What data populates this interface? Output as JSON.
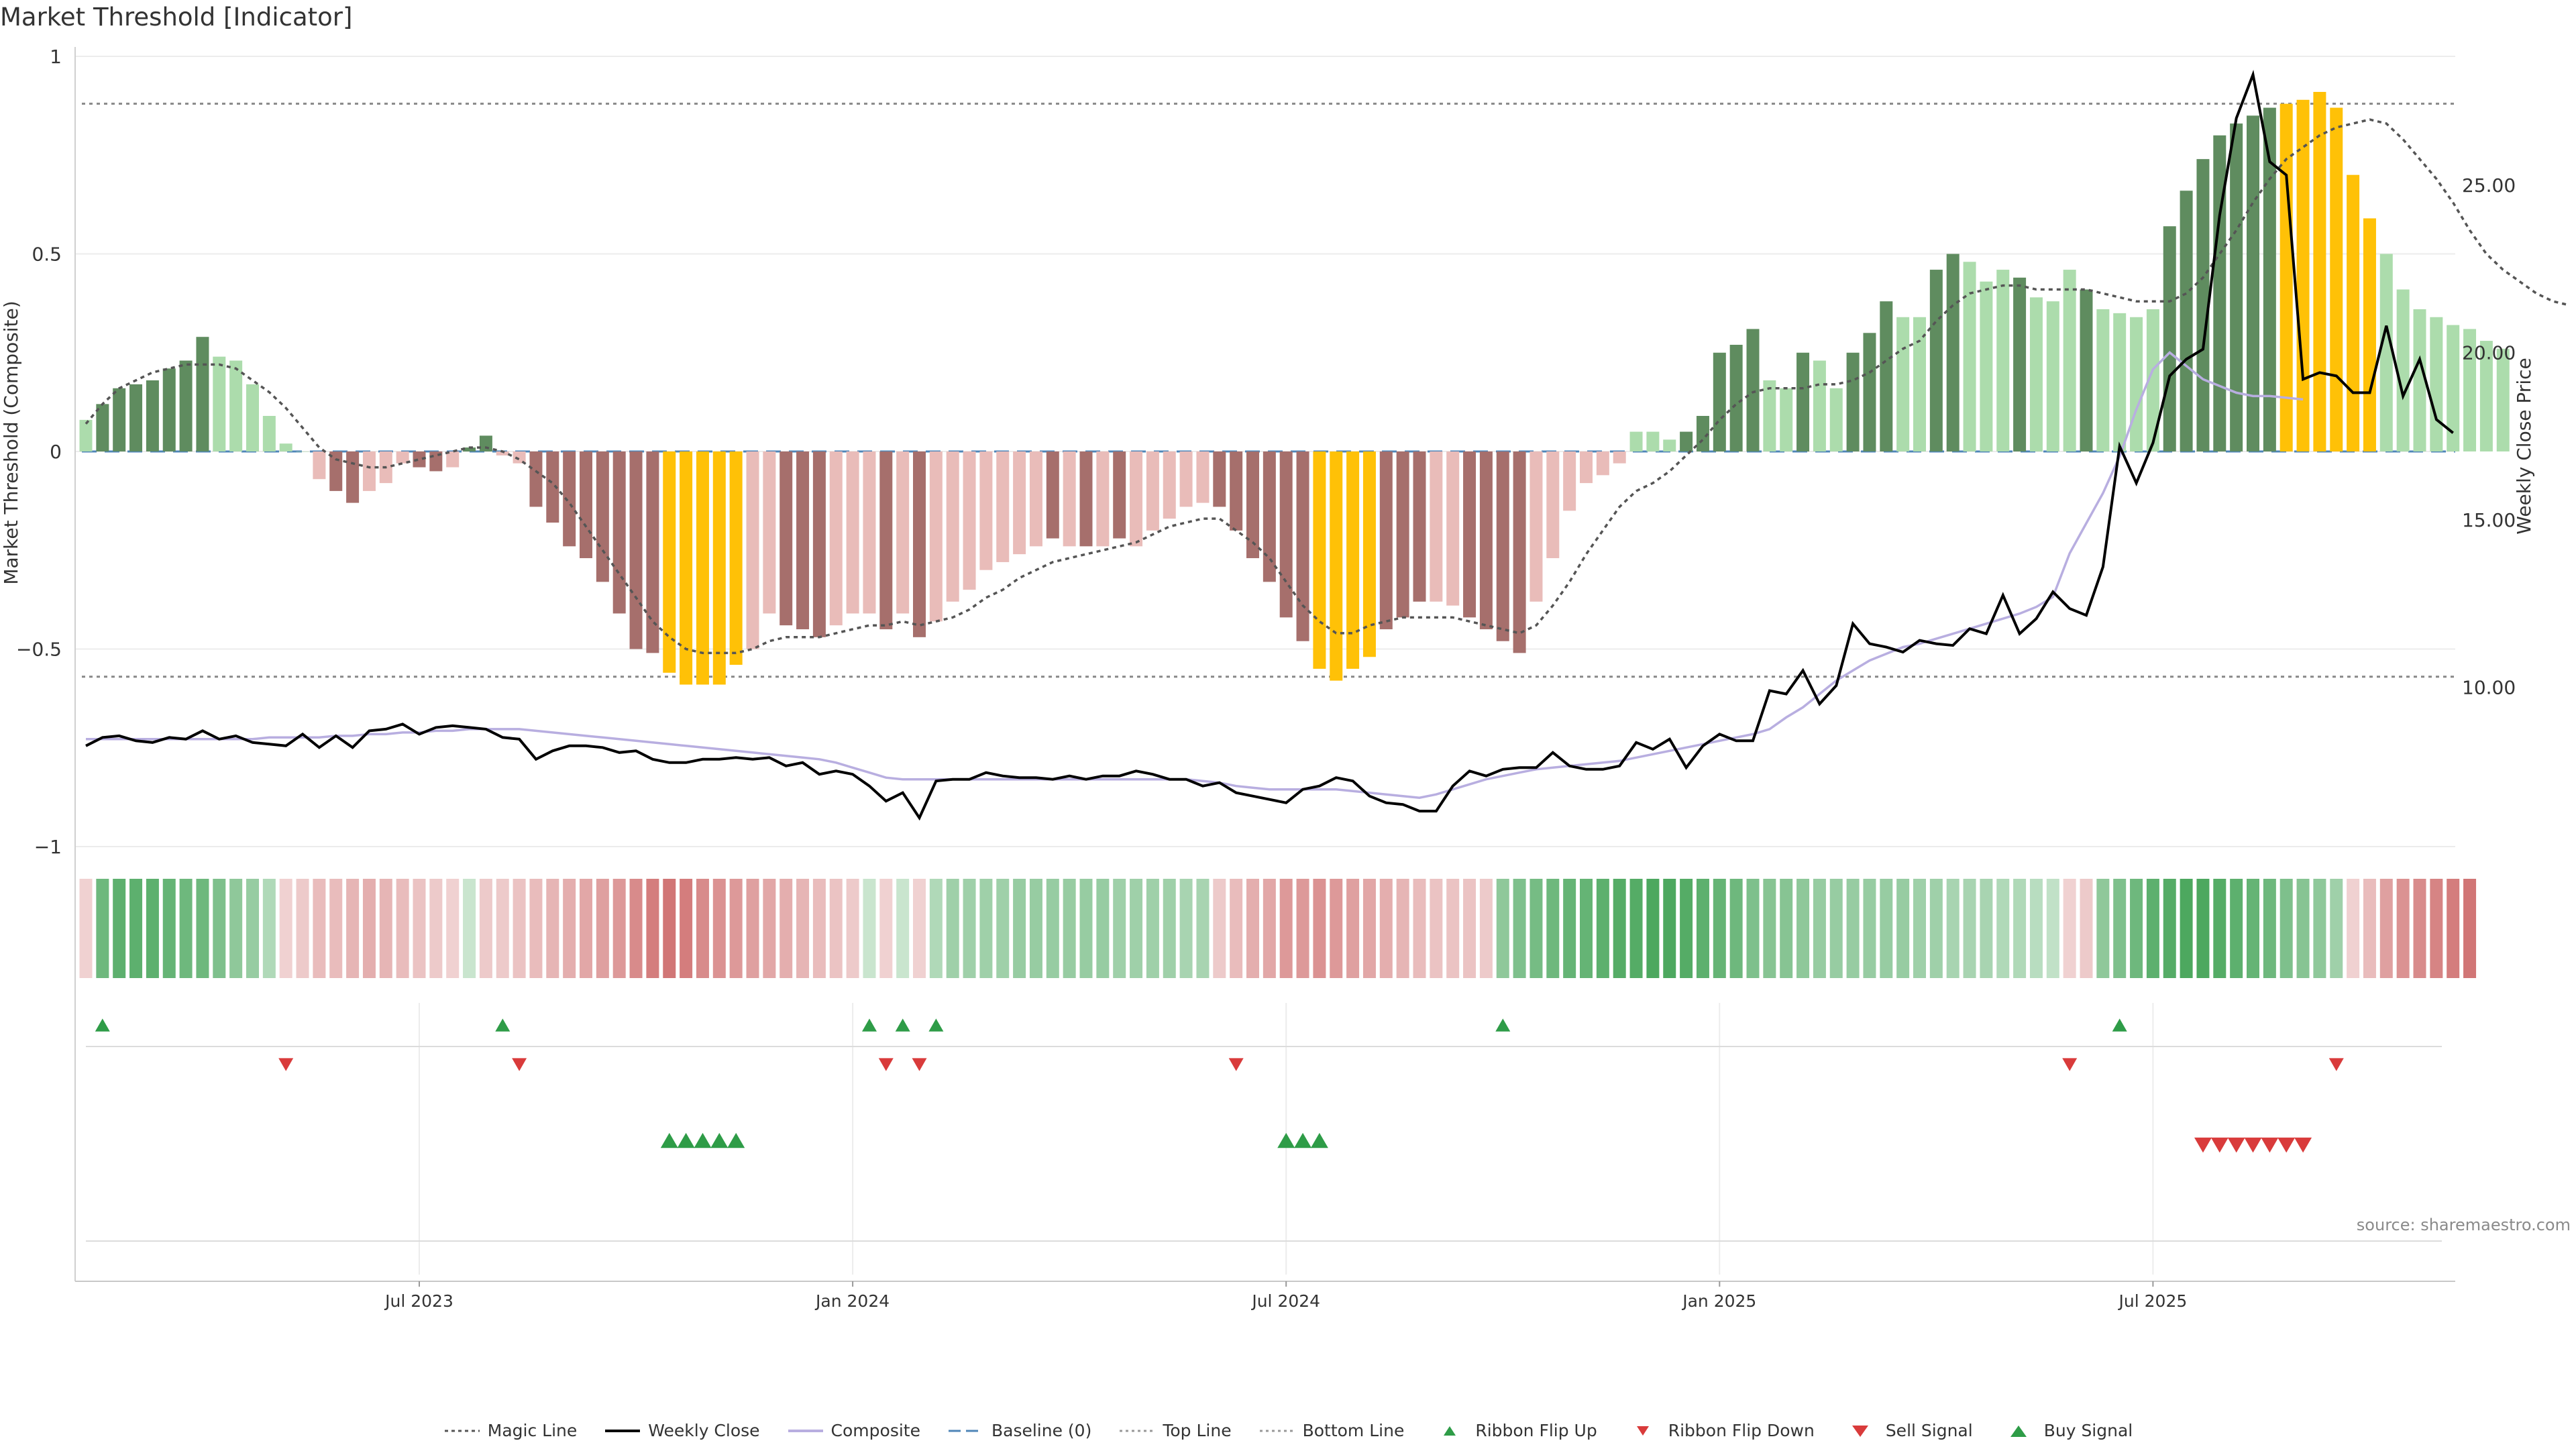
{
  "title": "Market Threshold [Indicator]",
  "source": "source: sharemaestro.com",
  "colors": {
    "bar_strong_pos": "#5f8c5f",
    "bar_weak_pos": "#acdcac",
    "bar_strong_neg": "#a66f6c",
    "bar_weak_neg": "#e9bcb9",
    "bar_extreme": "#ffc107",
    "weekly_close": "#000000",
    "composite": "#b8aee0",
    "magic_line": "#555555",
    "baseline": "#4f86b8",
    "up_marker": "#2e9c47",
    "down_marker": "#d93b3b"
  },
  "legend": [
    {
      "label": "Magic Line",
      "icon": "dotted-line-dark"
    },
    {
      "label": "Weekly Close",
      "icon": "solid-line-black"
    },
    {
      "label": "Composite",
      "icon": "solid-line-lavender"
    },
    {
      "label": "Baseline (0)",
      "icon": "dashed-line-blue"
    },
    {
      "label": "Top Line",
      "icon": "dotted-line-grey"
    },
    {
      "label": "Bottom Line",
      "icon": "dotted-line-grey"
    },
    {
      "label": "Ribbon Flip Up",
      "icon": "triangle-up-green-small"
    },
    {
      "label": "Ribbon Flip Down",
      "icon": "triangle-down-red-small"
    },
    {
      "label": "Sell Signal",
      "icon": "triangle-down-red"
    },
    {
      "label": "Buy Signal",
      "icon": "triangle-up-green"
    }
  ],
  "chart_data": {
    "type": "bar",
    "title": "Market Threshold [Indicator]",
    "ylabel": "Market Threshold (Composite)",
    "y2label": "Weekly Close Price",
    "ylim": [
      -1,
      1
    ],
    "y2lim": [
      6.2,
      28.5
    ],
    "yticks": [
      {
        "v": 1,
        "label": "1"
      },
      {
        "v": 0.5,
        "label": "0.5"
      },
      {
        "v": 0,
        "label": "0"
      },
      {
        "v": -0.5,
        "label": "−0.5"
      },
      {
        "v": -1,
        "label": "−1"
      }
    ],
    "y2ticks": [
      {
        "v": 10,
        "label": "10.00"
      },
      {
        "v": 15,
        "label": "15.00"
      },
      {
        "v": 20,
        "label": "20.00"
      },
      {
        "v": 25,
        "label": "25.00"
      }
    ],
    "xticks": [
      {
        "week": 20,
        "label": "Jul 2023"
      },
      {
        "week": 46,
        "label": "Jan 2024"
      },
      {
        "week": 72,
        "label": "Jul 2024"
      },
      {
        "week": 98,
        "label": "Jan 2025"
      },
      {
        "week": 124,
        "label": "Jul 2025"
      }
    ],
    "top_line": 0.88,
    "bottom_line": -0.57,
    "baseline": 0,
    "grid": true,
    "legend_position": "bottom-center",
    "bar_values": [
      0.08,
      0.12,
      0.16,
      0.17,
      0.18,
      0.21,
      0.23,
      0.29,
      0.24,
      0.23,
      0.17,
      0.09,
      0.02,
      0,
      -0.07,
      -0.1,
      -0.13,
      -0.1,
      -0.08,
      -0.03,
      -0.04,
      -0.05,
      -0.04,
      0.01,
      0.04,
      -0.01,
      -0.03,
      -0.14,
      -0.18,
      -0.24,
      -0.27,
      -0.33,
      -0.41,
      -0.5,
      -0.51,
      -0.56,
      -0.59,
      -0.59,
      -0.59,
      -0.54,
      -0.5,
      -0.41,
      -0.44,
      -0.45,
      -0.47,
      -0.44,
      -0.41,
      -0.41,
      -0.45,
      -0.41,
      -0.47,
      -0.43,
      -0.38,
      -0.35,
      -0.3,
      -0.28,
      -0.26,
      -0.24,
      -0.22,
      -0.24,
      -0.24,
      -0.24,
      -0.22,
      -0.24,
      -0.2,
      -0.17,
      -0.14,
      -0.13,
      -0.14,
      -0.2,
      -0.27,
      -0.33,
      -0.42,
      -0.48,
      -0.55,
      -0.58,
      -0.55,
      -0.52,
      -0.45,
      -0.42,
      -0.38,
      -0.38,
      -0.39,
      -0.42,
      -0.45,
      -0.48,
      -0.51,
      -0.38,
      -0.27,
      -0.15,
      -0.08,
      -0.06,
      -0.03,
      0.05,
      0.05,
      0.03,
      0.05,
      0.09,
      0.25,
      0.27,
      0.31,
      0.18,
      0.16,
      0.25,
      0.23,
      0.16,
      0.25,
      0.3,
      0.38,
      0.34,
      0.34,
      0.46,
      0.5,
      0.48,
      0.43,
      0.46,
      0.44,
      0.39,
      0.38,
      0.46,
      0.41,
      0.36,
      0.35,
      0.34,
      0.36,
      0.57,
      0.66,
      0.74,
      0.8,
      0.83,
      0.85,
      0.87,
      0.88,
      0.89,
      0.91,
      0.87,
      0.7,
      0.59,
      0.5,
      0.41,
      0.36,
      0.34,
      0.32,
      0.31,
      0.28,
      0.26
    ],
    "bar_classes": [
      "wp",
      "sp",
      "sp",
      "sp",
      "sp",
      "sp",
      "sp",
      "sp",
      "wp",
      "wp",
      "wp",
      "wp",
      "wp",
      "wp",
      "wn",
      "sn",
      "sn",
      "wn",
      "wn",
      "wn",
      "sn",
      "sn",
      "wn",
      "sp",
      "sp",
      "wn",
      "wn",
      "sn",
      "sn",
      "sn",
      "sn",
      "sn",
      "sn",
      "sn",
      "sn",
      "ex",
      "ex",
      "ex",
      "ex",
      "ex",
      "wn",
      "wn",
      "sn",
      "sn",
      "sn",
      "wn",
      "wn",
      "wn",
      "sn",
      "wn",
      "sn",
      "wn",
      "wn",
      "wn",
      "wn",
      "wn",
      "wn",
      "wn",
      "sn",
      "wn",
      "sn",
      "wn",
      "sn",
      "wn",
      "wn",
      "wn",
      "wn",
      "wn",
      "sn",
      "sn",
      "sn",
      "sn",
      "sn",
      "sn",
      "ex",
      "ex",
      "ex",
      "ex",
      "sn",
      "sn",
      "sn",
      "wn",
      "wn",
      "sn",
      "sn",
      "sn",
      "sn",
      "wn",
      "wn",
      "wn",
      "wn",
      "wn",
      "wn",
      "wp",
      "wp",
      "wp",
      "sp",
      "sp",
      "sp",
      "sp",
      "sp",
      "wp",
      "wp",
      "sp",
      "wp",
      "wp",
      "sp",
      "sp",
      "sp",
      "wp",
      "wp",
      "sp",
      "sp",
      "wp",
      "wp",
      "wp",
      "sp",
      "wp",
      "wp",
      "wp",
      "sp",
      "wp",
      "wp",
      "wp",
      "wp",
      "sp",
      "sp",
      "sp",
      "sp",
      "sp",
      "sp",
      "sp",
      "ex",
      "ex",
      "ex",
      "ex",
      "ex",
      "ex",
      "wp",
      "wp",
      "wp",
      "wp",
      "wp",
      "wp",
      "wp",
      "wp",
      "wp",
      "wp"
    ],
    "magic_line": [
      0.07,
      0.12,
      0.16,
      0.18,
      0.2,
      0.21,
      0.22,
      0.22,
      0.22,
      0.21,
      0.18,
      0.15,
      0.11,
      0.06,
      0.01,
      -0.02,
      -0.03,
      -0.04,
      -0.04,
      -0.03,
      -0.02,
      -0.01,
      0,
      0.01,
      0.01,
      0,
      -0.02,
      -0.05,
      -0.08,
      -0.13,
      -0.19,
      -0.25,
      -0.31,
      -0.37,
      -0.43,
      -0.47,
      -0.5,
      -0.51,
      -0.51,
      -0.51,
      -0.5,
      -0.48,
      -0.47,
      -0.47,
      -0.47,
      -0.46,
      -0.45,
      -0.44,
      -0.44,
      -0.43,
      -0.44,
      -0.43,
      -0.42,
      -0.4,
      -0.37,
      -0.35,
      -0.32,
      -0.3,
      -0.28,
      -0.27,
      -0.26,
      -0.25,
      -0.24,
      -0.23,
      -0.21,
      -0.19,
      -0.18,
      -0.17,
      -0.17,
      -0.2,
      -0.23,
      -0.27,
      -0.33,
      -0.39,
      -0.43,
      -0.46,
      -0.46,
      -0.44,
      -0.43,
      -0.42,
      -0.42,
      -0.42,
      -0.42,
      -0.43,
      -0.44,
      -0.45,
      -0.46,
      -0.44,
      -0.39,
      -0.33,
      -0.26,
      -0.2,
      -0.14,
      -0.1,
      -0.08,
      -0.05,
      -0.01,
      0.03,
      0.08,
      0.12,
      0.15,
      0.16,
      0.16,
      0.16,
      0.17,
      0.17,
      0.18,
      0.2,
      0.23,
      0.26,
      0.28,
      0.33,
      0.37,
      0.4,
      0.41,
      0.42,
      0.42,
      0.41,
      0.41,
      0.41,
      0.41,
      0.4,
      0.39,
      0.38,
      0.38,
      0.38,
      0.4,
      0.44,
      0.5,
      0.56,
      0.63,
      0.69,
      0.74,
      0.77,
      0.8,
      0.82,
      0.83,
      0.84,
      0.83,
      0.79,
      0.74,
      0.69,
      0.63,
      0.56,
      0.5,
      0.46,
      0.43,
      0.4,
      0.38,
      0.37
    ],
    "weekly_close": [
      8.25,
      8.5,
      8.55,
      8.4,
      8.35,
      8.5,
      8.45,
      8.7,
      8.45,
      8.55,
      8.35,
      8.3,
      8.25,
      8.6,
      8.2,
      8.55,
      8.2,
      8.7,
      8.75,
      8.9,
      8.6,
      8.8,
      8.85,
      8.8,
      8.75,
      8.5,
      8.45,
      7.85,
      8.1,
      8.25,
      8.25,
      8.2,
      8.05,
      8.1,
      7.85,
      7.75,
      7.75,
      7.85,
      7.85,
      7.9,
      7.85,
      7.9,
      7.65,
      7.75,
      7.4,
      7.5,
      7.4,
      7.05,
      6.6,
      6.85,
      6.1,
      7.2,
      7.25,
      7.25,
      7.45,
      7.35,
      7.3,
      7.3,
      7.25,
      7.35,
      7.25,
      7.35,
      7.35,
      7.5,
      7.4,
      7.25,
      7.25,
      7.05,
      7.15,
      6.85,
      6.75,
      6.65,
      6.55,
      6.95,
      7.05,
      7.3,
      7.2,
      6.75,
      6.55,
      6.5,
      6.3,
      6.3,
      7.05,
      7.5,
      7.35,
      7.55,
      7.6,
      7.6,
      8.05,
      7.65,
      7.55,
      7.55,
      7.65,
      8.35,
      8.15,
      8.45,
      7.6,
      8.25,
      8.6,
      8.4,
      8.4,
      9.9,
      9.8,
      10.5,
      9.5,
      10.05,
      11.9,
      11.3,
      11.2,
      11.05,
      11.4,
      11.3,
      11.25,
      11.75,
      11.6,
      12.75,
      11.6,
      12.05,
      12.85,
      12.35,
      12.15,
      13.6,
      17.2,
      16.1,
      17.3,
      19.3,
      19.8,
      20.1,
      24.1,
      27.0,
      28.3,
      25.7,
      25.3,
      19.2,
      19.4,
      19.3,
      18.8,
      18.8,
      20.8,
      18.7,
      19.8,
      18.0,
      17.6
    ],
    "composite_line": [
      8.45,
      8.45,
      8.45,
      8.45,
      8.45,
      8.45,
      8.45,
      8.45,
      8.45,
      8.45,
      8.45,
      8.5,
      8.5,
      8.5,
      8.5,
      8.55,
      8.55,
      8.6,
      8.6,
      8.65,
      8.65,
      8.7,
      8.7,
      8.75,
      8.75,
      8.75,
      8.75,
      8.7,
      8.65,
      8.6,
      8.55,
      8.5,
      8.45,
      8.4,
      8.35,
      8.3,
      8.25,
      8.2,
      8.15,
      8.1,
      8.05,
      8.0,
      7.95,
      7.9,
      7.85,
      7.75,
      7.6,
      7.45,
      7.3,
      7.25,
      7.25,
      7.25,
      7.25,
      7.25,
      7.25,
      7.25,
      7.25,
      7.25,
      7.25,
      7.25,
      7.25,
      7.25,
      7.25,
      7.25,
      7.25,
      7.25,
      7.25,
      7.2,
      7.15,
      7.05,
      7.0,
      6.95,
      6.95,
      6.95,
      6.95,
      6.95,
      6.9,
      6.85,
      6.8,
      6.75,
      6.7,
      6.8,
      6.95,
      7.1,
      7.25,
      7.35,
      7.45,
      7.55,
      7.6,
      7.65,
      7.7,
      7.75,
      7.8,
      7.9,
      8.0,
      8.1,
      8.2,
      8.3,
      8.4,
      8.5,
      8.6,
      8.75,
      9.1,
      9.4,
      9.8,
      10.2,
      10.5,
      10.8,
      11.0,
      11.2,
      11.3,
      11.45,
      11.6,
      11.75,
      11.9,
      12.05,
      12.2,
      12.4,
      12.7,
      14.0,
      14.9,
      15.8,
      16.9,
      18.3,
      19.5,
      20.0,
      19.6,
      19.2,
      19.0,
      18.8,
      18.7,
      18.7,
      18.65,
      18.6
    ],
    "flip_up": [
      1,
      25,
      47,
      49,
      51,
      85,
      122
    ],
    "flip_down": [
      12,
      26,
      48,
      50,
      69,
      119,
      135
    ],
    "buy_signal": [
      35,
      36,
      37,
      38,
      39,
      72,
      73,
      74
    ],
    "sell_signal": [
      127,
      128,
      129,
      130,
      131,
      132,
      133
    ],
    "ribbon": [
      -0.15,
      0.7,
      0.8,
      0.8,
      0.8,
      0.75,
      0.7,
      0.7,
      0.6,
      0.5,
      0.45,
      0.3,
      -0.15,
      -0.2,
      -0.3,
      -0.3,
      -0.35,
      -0.4,
      -0.35,
      -0.3,
      -0.25,
      -0.2,
      -0.15,
      0.15,
      -0.2,
      -0.2,
      -0.25,
      -0.3,
      -0.35,
      -0.4,
      -0.45,
      -0.5,
      -0.55,
      -0.65,
      -0.75,
      -0.8,
      -0.75,
      -0.65,
      -0.6,
      -0.55,
      -0.5,
      -0.45,
      -0.4,
      -0.35,
      -0.3,
      -0.25,
      -0.2,
      0.15,
      -0.15,
      0.15,
      -0.15,
      0.3,
      0.4,
      0.4,
      0.4,
      0.4,
      0.45,
      0.45,
      0.45,
      0.45,
      0.45,
      0.45,
      0.4,
      0.4,
      0.4,
      0.4,
      0.35,
      0.35,
      -0.2,
      -0.3,
      -0.4,
      -0.45,
      -0.55,
      -0.55,
      -0.6,
      -0.55,
      -0.5,
      -0.45,
      -0.4,
      -0.35,
      -0.3,
      -0.25,
      -0.25,
      -0.25,
      -0.2,
      0.5,
      0.6,
      0.65,
      0.7,
      0.75,
      0.75,
      0.8,
      0.85,
      0.85,
      0.9,
      0.9,
      0.85,
      0.8,
      0.75,
      0.7,
      0.6,
      0.55,
      0.55,
      0.5,
      0.45,
      0.45,
      0.45,
      0.45,
      0.45,
      0.45,
      0.4,
      0.4,
      0.35,
      0.35,
      0.35,
      0.3,
      0.3,
      0.25,
      0.2,
      -0.15,
      -0.2,
      0.5,
      0.6,
      0.7,
      0.8,
      0.85,
      0.9,
      0.9,
      0.85,
      0.8,
      0.75,
      0.7,
      0.6,
      0.55,
      0.5,
      0.4,
      -0.15,
      -0.3,
      -0.5,
      -0.6,
      -0.65,
      -0.7,
      -0.75,
      -0.8
    ]
  }
}
